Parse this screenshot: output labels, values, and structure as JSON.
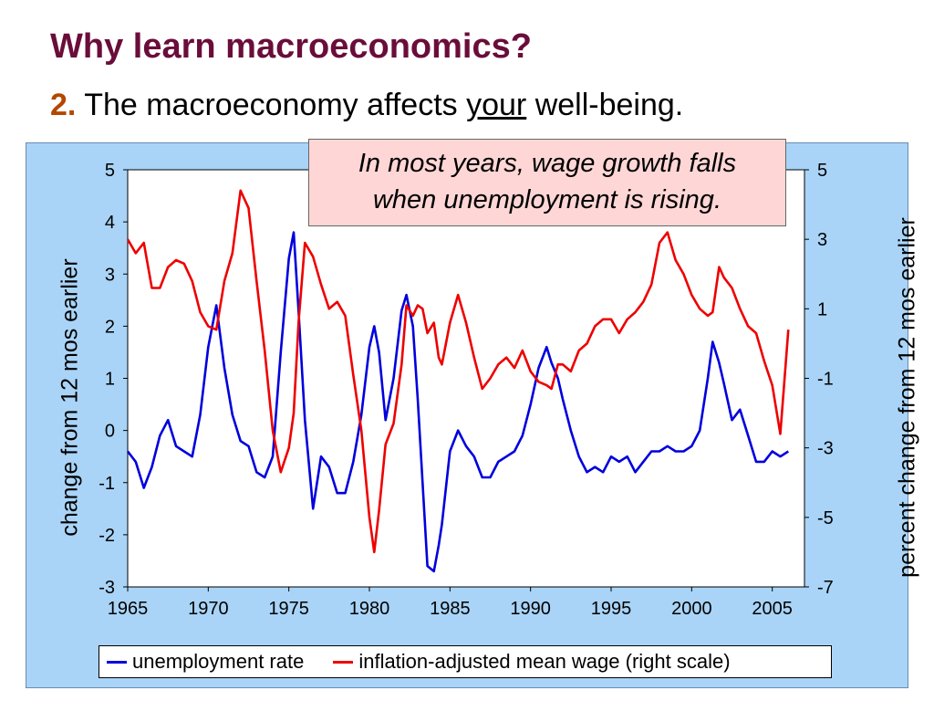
{
  "slide": {
    "title": "Why learn macroeconomics?",
    "subtitle_number": "2.",
    "subtitle_pre": "The macroeconomy affects",
    "subtitle_emph": "your",
    "subtitle_post": "well-being."
  },
  "callout": {
    "line1": "In most years, wage growth falls",
    "line2": "when unemployment is rising."
  },
  "chart_data": {
    "type": "line",
    "y_left_label": "change from 12 mos earlier",
    "y_right_label": "percent change from 12 mos earlier",
    "x_ticks": [
      "1965",
      "1970",
      "1975",
      "1980",
      "1985",
      "1990",
      "1995",
      "2000",
      "2005"
    ],
    "xlim": [
      1965,
      2007
    ],
    "y_left_ticks": [
      "5",
      "4",
      "3",
      "2",
      "1",
      "0",
      "-1",
      "-2",
      "-3"
    ],
    "ylim_left": [
      -3,
      5
    ],
    "y_right_ticks": [
      "5",
      "3",
      "1",
      "-1",
      "-3",
      "-5",
      "-7"
    ],
    "ylim_right": [
      -7,
      5
    ],
    "grid": false,
    "legend_position": "bottom",
    "series": [
      {
        "name": "unemployment rate",
        "axis": "left",
        "color": "#0000dd",
        "x": [
          1965,
          1965.5,
          1966,
          1966.5,
          1967,
          1967.5,
          1968,
          1968.5,
          1969,
          1969.5,
          1970,
          1970.5,
          1971,
          1971.5,
          1972,
          1972.5,
          1973,
          1973.5,
          1974,
          1974.5,
          1975,
          1975.3,
          1975.6,
          1976,
          1976.5,
          1977,
          1977.5,
          1978,
          1978.5,
          1979,
          1979.5,
          1980,
          1980.3,
          1980.6,
          1981,
          1981.5,
          1982,
          1982.3,
          1982.7,
          1983,
          1983.3,
          1983.6,
          1984,
          1984.3,
          1984.5,
          1985,
          1985.5,
          1986,
          1986.5,
          1987,
          1987.5,
          1988,
          1988.5,
          1989,
          1989.5,
          1990,
          1990.5,
          1991,
          1991.3,
          1991.7,
          1992,
          1992.5,
          1993,
          1993.5,
          1994,
          1994.5,
          1995,
          1995.5,
          1996,
          1996.5,
          1997,
          1997.5,
          1998,
          1998.5,
          1999,
          1999.5,
          2000,
          2000.5,
          2001,
          2001.3,
          2001.7,
          2002,
          2002.5,
          2003,
          2003.5,
          2004,
          2004.5,
          2005,
          2005.5,
          2006
        ],
        "y": [
          -0.4,
          -0.6,
          -1.1,
          -0.7,
          -0.1,
          0.2,
          -0.3,
          -0.4,
          -0.5,
          0.3,
          1.6,
          2.4,
          1.2,
          0.3,
          -0.2,
          -0.3,
          -0.8,
          -0.9,
          -0.5,
          1.5,
          3.3,
          3.8,
          2.3,
          0.2,
          -1.5,
          -0.5,
          -0.7,
          -1.2,
          -1.2,
          -0.6,
          0.3,
          1.6,
          2.0,
          1.5,
          0.2,
          1.0,
          2.3,
          2.6,
          2.0,
          0.6,
          -1.0,
          -2.6,
          -2.7,
          -2.2,
          -1.8,
          -0.4,
          0.0,
          -0.3,
          -0.5,
          -0.9,
          -0.9,
          -0.6,
          -0.5,
          -0.4,
          -0.1,
          0.5,
          1.2,
          1.6,
          1.3,
          1.0,
          0.6,
          0.0,
          -0.5,
          -0.8,
          -0.7,
          -0.8,
          -0.5,
          -0.6,
          -0.5,
          -0.8,
          -0.6,
          -0.4,
          -0.4,
          -0.3,
          -0.4,
          -0.4,
          -0.3,
          0.0,
          1.0,
          1.7,
          1.3,
          0.9,
          0.2,
          0.4,
          -0.1,
          -0.6,
          -0.6,
          -0.4,
          -0.5,
          -0.4
        ]
      },
      {
        "name": "inflation-adjusted mean wage (right scale)",
        "axis": "right",
        "color": "#ee0000",
        "x": [
          1965,
          1965.5,
          1966,
          1966.5,
          1967,
          1967.5,
          1968,
          1968.5,
          1969,
          1969.5,
          1970,
          1970.5,
          1971,
          1971.5,
          1972,
          1972.5,
          1973,
          1973.5,
          1974,
          1974.5,
          1975,
          1975.3,
          1975.6,
          1976,
          1976.5,
          1977,
          1977.5,
          1978,
          1978.5,
          1979,
          1979.5,
          1980,
          1980.3,
          1980.6,
          1981,
          1981.5,
          1982,
          1982.3,
          1982.7,
          1983,
          1983.3,
          1983.6,
          1984,
          1984.3,
          1984.5,
          1985,
          1985.5,
          1986,
          1986.5,
          1987,
          1987.5,
          1988,
          1988.5,
          1989,
          1989.5,
          1990,
          1990.5,
          1991,
          1991.3,
          1991.7,
          1992,
          1992.5,
          1993,
          1993.5,
          1994,
          1994.5,
          1995,
          1995.5,
          1996,
          1996.5,
          1997,
          1997.5,
          1998,
          1998.5,
          1999,
          1999.5,
          2000,
          2000.5,
          2001,
          2001.3,
          2001.7,
          2002,
          2002.5,
          2003,
          2003.5,
          2004,
          2004.5,
          2005,
          2005.5,
          2006
        ],
        "y": [
          3.0,
          2.6,
          2.9,
          1.6,
          1.6,
          2.2,
          2.4,
          2.3,
          1.8,
          0.9,
          0.5,
          0.4,
          1.8,
          2.6,
          4.4,
          3.9,
          1.8,
          -0.2,
          -2.5,
          -3.7,
          -3.0,
          -2.0,
          0.6,
          2.9,
          2.5,
          1.7,
          1.0,
          1.2,
          0.8,
          -0.9,
          -2.5,
          -5.0,
          -6.0,
          -4.8,
          -2.9,
          -2.3,
          -0.6,
          1.1,
          0.8,
          1.1,
          1.0,
          0.3,
          0.6,
          -0.4,
          -0.6,
          0.6,
          1.4,
          0.6,
          -0.4,
          -1.3,
          -1.0,
          -0.6,
          -0.4,
          -0.7,
          -0.2,
          -0.8,
          -1.1,
          -1.2,
          -1.3,
          -0.6,
          -0.6,
          -0.8,
          -0.2,
          0.0,
          0.5,
          0.7,
          0.7,
          0.3,
          0.7,
          0.9,
          1.2,
          1.7,
          2.9,
          3.2,
          2.4,
          2.0,
          1.4,
          1.0,
          0.8,
          0.9,
          2.2,
          1.9,
          1.6,
          1.0,
          0.5,
          0.3,
          -0.5,
          -1.2,
          -2.6,
          0.4
        ]
      }
    ]
  }
}
